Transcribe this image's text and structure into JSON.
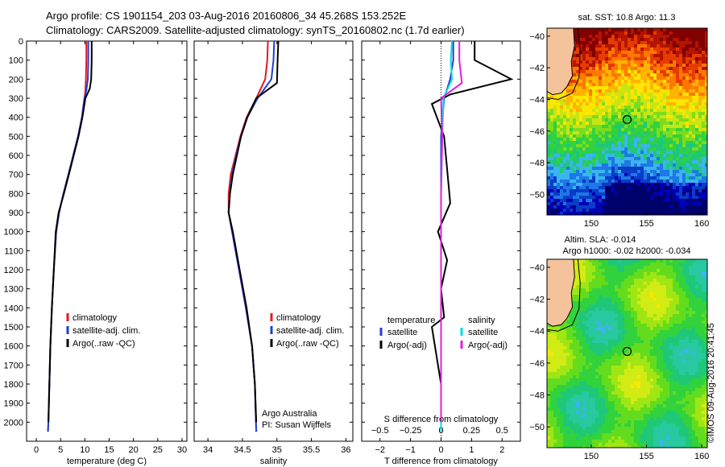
{
  "header": {
    "line1": "Argo profile: CS 1901154_203 03-Aug-2016 20160806_34 45.268S 153.252E",
    "line2": "Climatology: CARS2009. Satellite-adjusted climatology: synTS_20160802.nc (1.7d earlier)"
  },
  "footer": {
    "line1": "Argo Australia",
    "line2": "PI: Susan Wijffels",
    "credit": "©IMOS 09-Aug-2016 20:41:45"
  },
  "colors": {
    "climatology": "#e41a1c",
    "satellite": "#1f3fd6",
    "argo": "#000000",
    "sal_satellite": "#00dede",
    "sal_argo": "#e01ee0"
  },
  "chart_data": [
    {
      "type": "line",
      "panel": "temperature",
      "xlabel": "temperature (deg C)",
      "ylabel": "",
      "xlim": [
        -2,
        31
      ],
      "ylim": [
        2100,
        0
      ],
      "xticks": [
        0,
        5,
        10,
        15,
        20,
        25,
        30
      ],
      "yticks": [
        0,
        100,
        200,
        300,
        400,
        500,
        600,
        700,
        800,
        900,
        1000,
        1100,
        1200,
        1300,
        1400,
        1500,
        1600,
        1700,
        1800,
        1900,
        2000
      ],
      "legend": [
        "climatology",
        "satellite-adj. clim.",
        "Argo(..raw -QC)"
      ],
      "series": [
        {
          "name": "climatology",
          "x": [
            10.3,
            10.3,
            10.2,
            10.1,
            9.9,
            9.4,
            8.6,
            7.6,
            6.6,
            5.6,
            4.7,
            4.1,
            3.6,
            3.2,
            2.9,
            2.7,
            2.5,
            2.4
          ],
          "y": [
            0,
            100,
            200,
            260,
            300,
            400,
            500,
            600,
            700,
            800,
            900,
            1000,
            1200,
            1400,
            1600,
            1800,
            2000,
            2050
          ]
        },
        {
          "name": "satellite-adj. clim.",
          "x": [
            10.7,
            10.7,
            10.6,
            10.3,
            9.9,
            9.4,
            8.6,
            7.6,
            6.6,
            5.6,
            4.7,
            4.1,
            3.6,
            3.2,
            2.9,
            2.7,
            2.5,
            2.4
          ],
          "y": [
            0,
            100,
            200,
            260,
            300,
            400,
            500,
            600,
            700,
            800,
            900,
            1000,
            1200,
            1400,
            1600,
            1800,
            2000,
            2050
          ]
        },
        {
          "name": "Argo(..raw -QC)",
          "x": [
            11.4,
            11.4,
            11.3,
            11.0,
            10.1,
            9.5,
            8.7,
            7.7,
            6.7,
            5.7,
            4.6,
            4.0,
            3.6,
            3.2,
            2.9,
            2.7,
            2.5
          ],
          "y": [
            0,
            100,
            200,
            250,
            300,
            400,
            500,
            600,
            700,
            800,
            900,
            1000,
            1200,
            1400,
            1600,
            1800,
            2000
          ]
        }
      ]
    },
    {
      "type": "line",
      "panel": "salinity",
      "xlabel": "salinity",
      "xlim": [
        33.8,
        36.1
      ],
      "ylim": [
        2100,
        0
      ],
      "xticks": [
        34,
        34.5,
        35,
        35.5,
        36
      ],
      "legend": [
        "climatology",
        "satellite-adj. clim.",
        "Argo(..raw -QC)"
      ],
      "series": [
        {
          "name": "climatology",
          "x": [
            34.87,
            34.86,
            34.83,
            34.7,
            34.56,
            34.47,
            34.4,
            34.33,
            34.3,
            34.3,
            34.35,
            34.45,
            34.55,
            34.64,
            34.68,
            34.7
          ],
          "y": [
            0,
            100,
            200,
            300,
            400,
            500,
            600,
            700,
            800,
            900,
            1000,
            1200,
            1400,
            1600,
            1800,
            2050
          ]
        },
        {
          "name": "satellite-adj. clim.",
          "x": [
            34.96,
            34.95,
            34.92,
            34.72,
            34.57,
            34.48,
            34.41,
            34.35,
            34.32,
            34.3,
            34.35,
            34.45,
            34.55,
            34.64,
            34.68,
            34.7
          ],
          "y": [
            0,
            100,
            200,
            300,
            400,
            500,
            600,
            700,
            800,
            900,
            1000,
            1200,
            1400,
            1600,
            1800,
            2050
          ]
        },
        {
          "name": "Argo(..raw -QC)",
          "x": [
            35.02,
            35.01,
            35.0,
            34.7,
            34.57,
            34.48,
            34.42,
            34.36,
            34.32,
            34.3,
            34.36,
            34.46,
            34.56,
            34.64,
            34.68,
            34.7
          ],
          "y": [
            0,
            100,
            220,
            300,
            400,
            500,
            600,
            700,
            800,
            900,
            1000,
            1200,
            1400,
            1600,
            1800,
            2000
          ]
        }
      ]
    },
    {
      "type": "line",
      "panel": "difference",
      "xlabel": "T difference from climatology",
      "xlabel_top": "S difference from climatology",
      "xlim": [
        -2.6,
        2.6
      ],
      "ylim": [
        2100,
        0
      ],
      "xticks": [
        -2,
        -1,
        0,
        1,
        2
      ],
      "xticks_top": [
        -0.5,
        -0.25,
        0,
        0.25,
        0.5
      ],
      "legend_titles": [
        "temperature",
        "salinity"
      ],
      "legend": [
        "satellite",
        "Argo(-adj)",
        "satellite",
        "Argo(-adj)"
      ],
      "series": [
        {
          "name": "satellite",
          "group": "temperature",
          "x": [
            0.4,
            0.4,
            0.3,
            0.1,
            0.0,
            0.0,
            0.0,
            0.0,
            0.0,
            0.0
          ],
          "y": [
            0,
            100,
            200,
            300,
            500,
            800,
            1100,
            1400,
            1800,
            2050
          ]
        },
        {
          "name": "Argo(-adj)",
          "group": "temperature",
          "x": [
            1.1,
            1.1,
            2.3,
            0.3,
            -0.3,
            0.1,
            0.3,
            -0.1,
            0.2,
            0.0,
            0.1,
            -0.3,
            0.0,
            0.0
          ],
          "y": [
            0,
            100,
            200,
            280,
            330,
            500,
            850,
            1000,
            1150,
            1300,
            1450,
            1500,
            1800,
            2000
          ]
        },
        {
          "name": "satellite",
          "group": "salinity",
          "x": [
            0.09,
            0.08,
            0.09,
            0.02,
            0.01,
            0.0,
            0.0,
            0.0,
            0.0
          ],
          "y": [
            0,
            100,
            200,
            300,
            500,
            800,
            1100,
            1500,
            2050
          ]
        },
        {
          "name": "Argo(-adj)",
          "group": "salinity",
          "x": [
            0.15,
            0.15,
            0.17,
            0.0,
            0.01,
            0.0,
            0.0,
            0.0,
            0.0
          ],
          "y": [
            0,
            100,
            220,
            300,
            500,
            800,
            1100,
            1500,
            2000
          ]
        }
      ]
    },
    {
      "type": "heatmap",
      "panel": "sst-map",
      "title": "sat. SST: 10.8 Argo: 11.3",
      "xlim": [
        146,
        160.5
      ],
      "ylim": [
        -51.3,
        -39.5
      ],
      "xticks": [
        150,
        155,
        160
      ],
      "yticks": [
        -40,
        -42,
        -44,
        -46,
        -48,
        -50
      ],
      "marker": {
        "lon": 153.25,
        "lat": -45.27
      }
    },
    {
      "type": "heatmap",
      "panel": "sla-map",
      "title_line1": "Altim. SLA: -0.014",
      "title_line2": "Argo h1000: -0.02 h2000: -0.034",
      "xlim": [
        146,
        160.5
      ],
      "ylim": [
        -51.3,
        -39.5
      ],
      "xticks": [
        150,
        155,
        160
      ],
      "yticks": [
        -40,
        -42,
        -44,
        -46,
        -48,
        -50
      ],
      "marker": {
        "lon": 153.25,
        "lat": -45.27
      }
    }
  ]
}
